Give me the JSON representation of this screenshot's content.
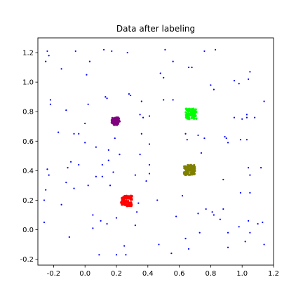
{
  "chart_data": {
    "type": "scatter",
    "title": "Data after labeling",
    "xlabel": "",
    "ylabel": "",
    "xlim": [
      -0.3,
      1.2
    ],
    "ylim": [
      -0.24,
      1.3
    ],
    "xticks": [
      "-0.2",
      "0.0",
      "0.2",
      "0.4",
      "0.6",
      "0.8",
      "1.0",
      "1.2"
    ],
    "yticks": [
      "-0.2",
      "0.0",
      "0.2",
      "0.4",
      "0.6",
      "0.8",
      "1.0",
      "1.2"
    ],
    "grid": false,
    "clusters": [
      {
        "color": "#800080",
        "center": [
          0.195,
          0.735
        ],
        "spread": [
          0.025,
          0.025
        ],
        "count": 70
      },
      {
        "color": "#00ff00",
        "center": [
          0.675,
          0.785
        ],
        "spread": [
          0.035,
          0.035
        ],
        "count": 90
      },
      {
        "color": "#808000",
        "center": [
          0.665,
          0.405
        ],
        "spread": [
          0.035,
          0.035
        ],
        "count": 80
      },
      {
        "color": "#ff0000",
        "center": [
          0.265,
          0.195
        ],
        "spread": [
          0.035,
          0.035
        ],
        "count": 90
      }
    ],
    "noise": {
      "color": "#0000ff",
      "points": [
        [
          -0.24,
          1.21
        ],
        [
          -0.23,
          1.18
        ],
        [
          -0.25,
          1.14
        ],
        [
          -0.15,
          1.09
        ],
        [
          -0.06,
          1.21
        ],
        [
          0.03,
          1.14
        ],
        [
          0.01,
          1.05
        ],
        [
          0.12,
          1.22
        ],
        [
          0.17,
          1.21
        ],
        [
          0.27,
          1.2
        ],
        [
          0.51,
          1.22
        ],
        [
          0.56,
          1.14
        ],
        [
          0.76,
          1.21
        ],
        [
          0.83,
          1.22
        ],
        [
          0.48,
          1.06
        ],
        [
          0.5,
          1.03
        ],
        [
          0.66,
          1.1
        ],
        [
          0.68,
          1.1
        ],
        [
          0.8,
          0.98
        ],
        [
          0.82,
          0.95
        ],
        [
          0.95,
          1.01
        ],
        [
          0.98,
          0.99
        ],
        [
          1.05,
          1.07
        ],
        [
          1.04,
          1.02
        ],
        [
          -0.22,
          0.88
        ],
        [
          -0.22,
          0.85
        ],
        [
          -0.12,
          0.81
        ],
        [
          -0.17,
          0.66
        ],
        [
          0.13,
          0.9
        ],
        [
          0.14,
          0.89
        ],
        [
          0.28,
          0.92
        ],
        [
          0.29,
          0.91
        ],
        [
          0.36,
          0.87
        ],
        [
          0.02,
          0.85
        ],
        [
          -0.07,
          0.65
        ],
        [
          0.0,
          0.72
        ],
        [
          0.5,
          0.88
        ],
        [
          0.56,
          0.88
        ],
        [
          0.35,
          0.78
        ],
        [
          0.37,
          0.76
        ],
        [
          0.41,
          0.77
        ],
        [
          0.64,
          0.65
        ],
        [
          0.65,
          0.61
        ],
        [
          0.72,
          0.64
        ],
        [
          0.76,
          0.62
        ],
        [
          0.89,
          0.63
        ],
        [
          0.9,
          0.62
        ],
        [
          0.91,
          0.59
        ],
        [
          0.95,
          0.76
        ],
        [
          1.0,
          0.75
        ],
        [
          1.03,
          0.78
        ],
        [
          1.03,
          0.76
        ],
        [
          1.08,
          0.76
        ],
        [
          1.14,
          0.87
        ],
        [
          0.99,
          0.61
        ],
        [
          1.03,
          0.61
        ],
        [
          -0.04,
          0.65
        ],
        [
          0.0,
          0.59
        ],
        [
          0.07,
          0.56
        ],
        [
          0.15,
          0.54
        ],
        [
          0.19,
          0.62
        ],
        [
          0.22,
          0.51
        ],
        [
          0.35,
          0.51
        ],
        [
          0.36,
          0.65
        ],
        [
          0.41,
          0.58
        ],
        [
          0.74,
          0.52
        ],
        [
          -0.09,
          0.46
        ],
        [
          -0.04,
          0.44
        ],
        [
          -0.11,
          0.42
        ],
        [
          -0.24,
          0.41
        ],
        [
          -0.23,
          0.37
        ],
        [
          -0.12,
          0.32
        ],
        [
          -0.07,
          0.28
        ],
        [
          0.02,
          0.3
        ],
        [
          0.07,
          0.36
        ],
        [
          0.11,
          0.36
        ],
        [
          0.11,
          0.44
        ],
        [
          0.15,
          0.47
        ],
        [
          0.16,
          0.3
        ],
        [
          0.18,
          0.39
        ],
        [
          0.32,
          0.37
        ],
        [
          0.39,
          0.33
        ],
        [
          0.41,
          0.44
        ],
        [
          0.41,
          0.38
        ],
        [
          0.62,
          0.23
        ],
        [
          0.88,
          0.34
        ],
        [
          1.04,
          0.42
        ],
        [
          1.05,
          0.37
        ],
        [
          1.12,
          0.42
        ],
        [
          1.05,
          0.25
        ],
        [
          0.99,
          0.25
        ],
        [
          -0.25,
          0.27
        ],
        [
          -0.26,
          0.2
        ],
        [
          -0.26,
          0.05
        ],
        [
          -0.15,
          0.17
        ],
        [
          -0.1,
          -0.05
        ],
        [
          0.05,
          0.1
        ],
        [
          0.05,
          0.01
        ],
        [
          0.1,
          0.06
        ],
        [
          0.14,
          0.04
        ],
        [
          0.2,
          0.08
        ],
        [
          0.32,
          0.03
        ],
        [
          0.33,
          0.12
        ],
        [
          0.34,
          0.18
        ],
        [
          0.46,
          0.2
        ],
        [
          0.58,
          0.09
        ],
        [
          0.72,
          0.11
        ],
        [
          0.77,
          0.14
        ],
        [
          0.81,
          0.12
        ],
        [
          0.82,
          0.1
        ],
        [
          0.88,
          0.14
        ],
        [
          0.73,
          -0.02
        ],
        [
          0.64,
          -0.06
        ],
        [
          0.66,
          -0.13
        ],
        [
          0.86,
          0.07
        ],
        [
          0.91,
          -0.02
        ],
        [
          0.91,
          -0.12
        ],
        [
          0.98,
          0.02
        ],
        [
          1.02,
          -0.08
        ],
        [
          1.05,
          -0.02
        ],
        [
          1.04,
          0.06
        ],
        [
          1.1,
          0.04
        ],
        [
          1.13,
          0.05
        ],
        [
          1.14,
          -0.1
        ],
        [
          0.47,
          -0.1
        ],
        [
          0.55,
          -0.16
        ],
        [
          0.09,
          -0.17
        ],
        [
          0.2,
          -0.17
        ],
        [
          0.26,
          -0.17
        ],
        [
          0.25,
          -0.11
        ]
      ]
    }
  }
}
